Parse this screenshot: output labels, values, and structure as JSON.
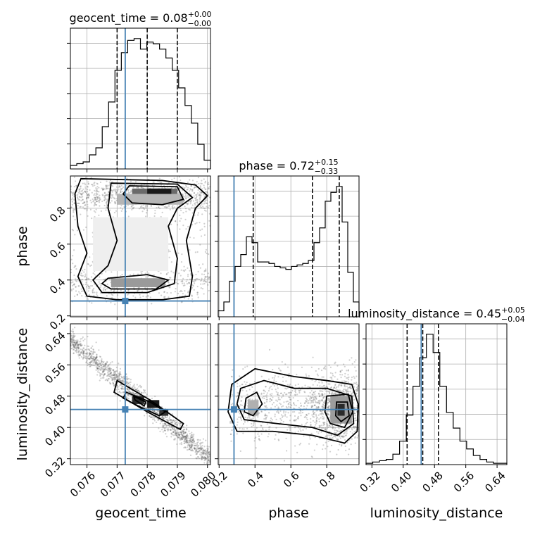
{
  "chart_data": {
    "type": "corner",
    "parameters": [
      "geocent_time",
      "phase",
      "luminosity_distance"
    ],
    "truths": {
      "geocent_time": 0.07727,
      "phase": 0.283,
      "luminosity_distance": 0.446
    },
    "ranges": {
      "geocent_time": [
        0.07545,
        0.0801
      ],
      "phase": [
        0.195,
        0.98
      ],
      "luminosity_distance": [
        0.305,
        0.665
      ]
    },
    "ticks": {
      "geocent_time": {
        "values": [
          0.076,
          0.077,
          0.078,
          0.079,
          0.08
        ],
        "labels": [
          "0.076",
          "0.077",
          "0.078",
          "0.079",
          "0.080"
        ]
      },
      "phase": {
        "values": [
          0.2,
          0.4,
          0.6,
          0.8
        ],
        "labels": [
          "0.2",
          "0.4",
          "0.6",
          "0.8"
        ]
      },
      "luminosity_distance": {
        "values": [
          0.32,
          0.4,
          0.48,
          0.56,
          0.64
        ],
        "labels": [
          "0.32",
          "0.40",
          "0.48",
          "0.56",
          "0.64"
        ]
      }
    },
    "titles": [
      {
        "param": "geocent_time",
        "text": "geocent_time = 0.08",
        "sup": "+0.00",
        "sub": "−0.00"
      },
      {
        "param": "phase",
        "text": "phase = 0.72",
        "sup": "+0.15",
        "sub": "−0.33"
      },
      {
        "param": "luminosity_distance",
        "text": "luminosity_distance = 0.45",
        "sup": "+0.05",
        "sub": "−0.04"
      }
    ],
    "quantiles": {
      "geocent_time": [
        0.077,
        0.078,
        0.079
      ],
      "phase": [
        0.39,
        0.72,
        0.87
      ],
      "luminosity_distance": [
        0.41,
        0.45,
        0.49
      ]
    },
    "histograms": {
      "geocent_time": {
        "edges_range": [
          0.07545,
          0.0801
        ],
        "counts": [
          2,
          3,
          4,
          8,
          12,
          24,
          38,
          56,
          66,
          73,
          74,
          68,
          72,
          71,
          68,
          63,
          56,
          46,
          36,
          26,
          14,
          5
        ]
      },
      "phase": {
        "edges_range": [
          0.195,
          0.98
        ],
        "counts": [
          4,
          10,
          24,
          34,
          42,
          54,
          50,
          37,
          37,
          36,
          34,
          33,
          32,
          34,
          35,
          36,
          38,
          50,
          60,
          78,
          84,
          88,
          64,
          30,
          10
        ]
      },
      "luminosity_distance": {
        "edges_range": [
          0.305,
          0.665
        ],
        "counts": [
          1,
          2,
          3,
          4,
          8,
          18,
          38,
          60,
          82,
          100,
          86,
          60,
          40,
          28,
          18,
          12,
          7,
          4,
          2,
          1,
          1
        ]
      }
    },
    "grid": true
  }
}
